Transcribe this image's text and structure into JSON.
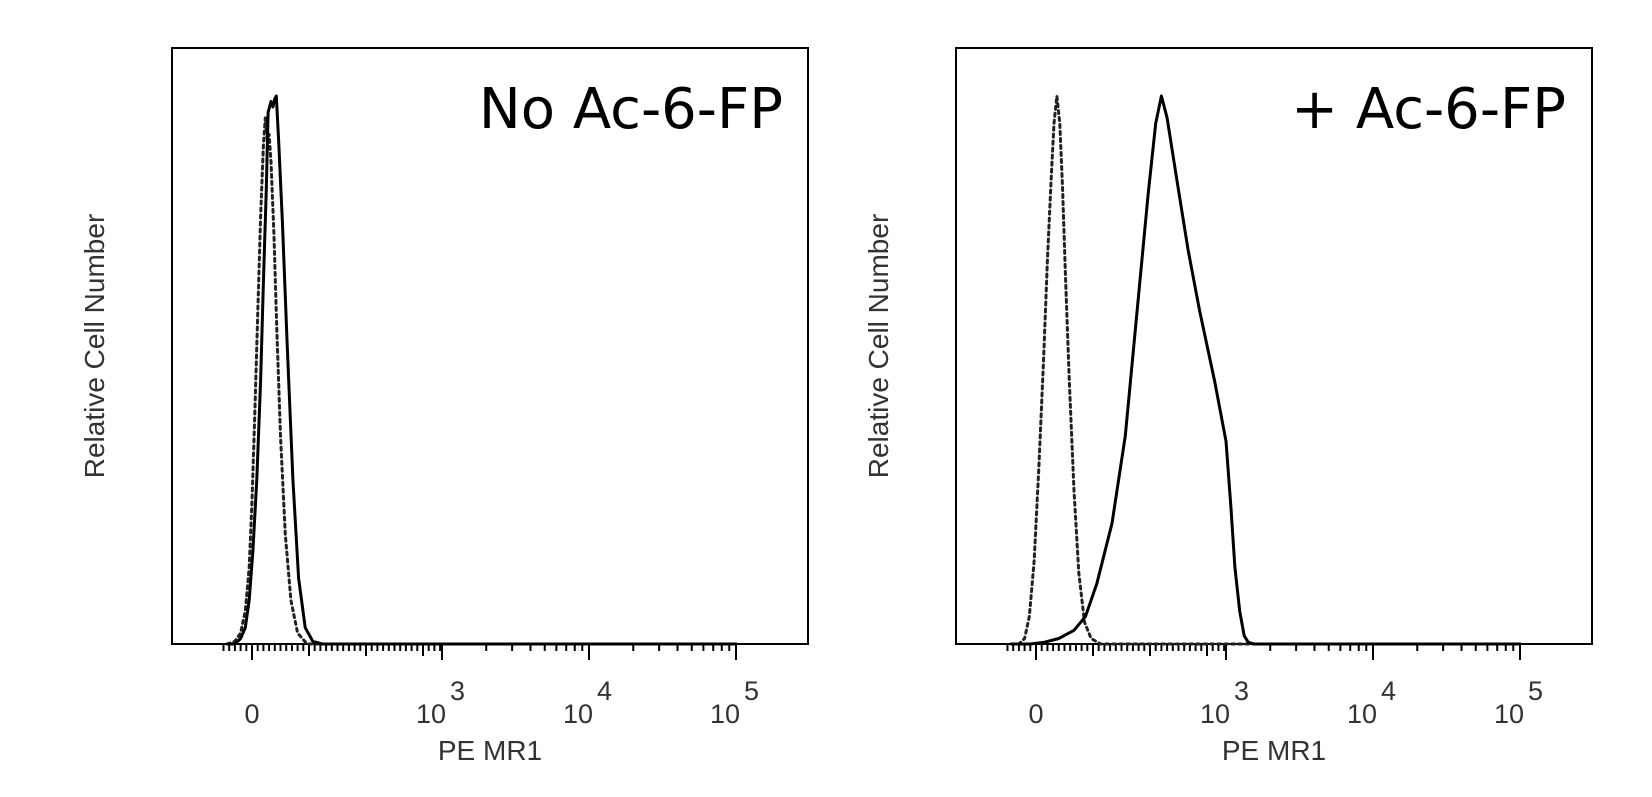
{
  "chart_data": [
    {
      "type": "area",
      "title": "No Ac-6-FP",
      "xlabel": "PE MR1",
      "ylabel": "Relative Cell Number",
      "x_scale": "biexponential",
      "x_ticks": [
        {
          "value": "0",
          "base": "",
          "exp": ""
        },
        {
          "value": "10^3",
          "base": "10",
          "exp": "3"
        },
        {
          "value": "10^4",
          "base": "10",
          "exp": "4"
        },
        {
          "value": "10^5",
          "base": "10",
          "exp": "5"
        }
      ],
      "ylim": [
        0,
        100
      ],
      "grid": false,
      "series": [
        {
          "style": "dotted",
          "points": [
            [
              -130,
              0
            ],
            [
              -90,
              0.5
            ],
            [
              -60,
              2
            ],
            [
              -35,
              6
            ],
            [
              -15,
              14
            ],
            [
              0,
              26
            ],
            [
              15,
              42
            ],
            [
              30,
              60
            ],
            [
              45,
              78
            ],
            [
              60,
              91
            ],
            [
              70,
              96
            ],
            [
              80,
              92
            ],
            [
              90,
              93
            ],
            [
              100,
              88
            ],
            [
              115,
              75
            ],
            [
              130,
              58
            ],
            [
              150,
              38
            ],
            [
              175,
              20
            ],
            [
              205,
              8
            ],
            [
              240,
              2
            ],
            [
              290,
              0
            ],
            [
              340,
              0
            ],
            [
              100000,
              0
            ]
          ]
        },
        {
          "style": "solid",
          "points": [
            [
              -130,
              0
            ],
            [
              -90,
              0
            ],
            [
              -60,
              1
            ],
            [
              -35,
              3
            ],
            [
              -15,
              8
            ],
            [
              5,
              17
            ],
            [
              25,
              30
            ],
            [
              45,
              48
            ],
            [
              60,
              66
            ],
            [
              75,
              83
            ],
            [
              85,
              97
            ],
            [
              100,
              99
            ],
            [
              110,
              98
            ],
            [
              120,
              99.5
            ],
            [
              128,
              100
            ],
            [
              140,
              92
            ],
            [
              160,
              77
            ],
            [
              185,
              55
            ],
            [
              215,
              30
            ],
            [
              245,
              12
            ],
            [
              280,
              3
            ],
            [
              320,
              0.5
            ],
            [
              370,
              0
            ],
            [
              100000,
              0
            ]
          ]
        }
      ]
    },
    {
      "type": "area",
      "title": "+ Ac-6-FP",
      "xlabel": "PE MR1",
      "ylabel": "Relative Cell Number",
      "x_scale": "biexponential",
      "x_ticks": [
        {
          "value": "0",
          "base": "",
          "exp": ""
        },
        {
          "value": "10^3",
          "base": "10",
          "exp": "3"
        },
        {
          "value": "10^4",
          "base": "10",
          "exp": "4"
        },
        {
          "value": "10^5",
          "base": "10",
          "exp": "5"
        }
      ],
      "ylim": [
        0,
        100
      ],
      "grid": false,
      "series": [
        {
          "style": "dotted",
          "points": [
            [
              -130,
              0
            ],
            [
              -90,
              0
            ],
            [
              -60,
              1
            ],
            [
              -35,
              5
            ],
            [
              -10,
              15
            ],
            [
              15,
              32
            ],
            [
              40,
              52
            ],
            [
              60,
              70
            ],
            [
              80,
              85
            ],
            [
              95,
              95
            ],
            [
              110,
              100
            ],
            [
              125,
              95
            ],
            [
              140,
              83
            ],
            [
              155,
              67
            ],
            [
              175,
              48
            ],
            [
              200,
              28
            ],
            [
              225,
              13
            ],
            [
              255,
              4
            ],
            [
              290,
              1
            ],
            [
              340,
              0
            ],
            [
              100000,
              0
            ]
          ]
        },
        {
          "style": "solid",
          "points": [
            [
              -130,
              0
            ],
            [
              -30,
              0
            ],
            [
              40,
              0.3
            ],
            [
              120,
              1
            ],
            [
              200,
              2.5
            ],
            [
              260,
              5
            ],
            [
              320,
              11
            ],
            [
              400,
              22
            ],
            [
              470,
              38
            ],
            [
              530,
              60
            ],
            [
              590,
              82
            ],
            [
              630,
              95
            ],
            [
              660,
              100
            ],
            [
              690,
              96
            ],
            [
              740,
              85
            ],
            [
              800,
              72
            ],
            [
              860,
              61
            ],
            [
              940,
              48
            ],
            [
              1000,
              37
            ],
            [
              1080,
              25
            ],
            [
              1150,
              14
            ],
            [
              1240,
              6
            ],
            [
              1330,
              1.5
            ],
            [
              1420,
              0.3
            ],
            [
              1550,
              0
            ],
            [
              100000,
              0
            ]
          ]
        }
      ]
    }
  ]
}
